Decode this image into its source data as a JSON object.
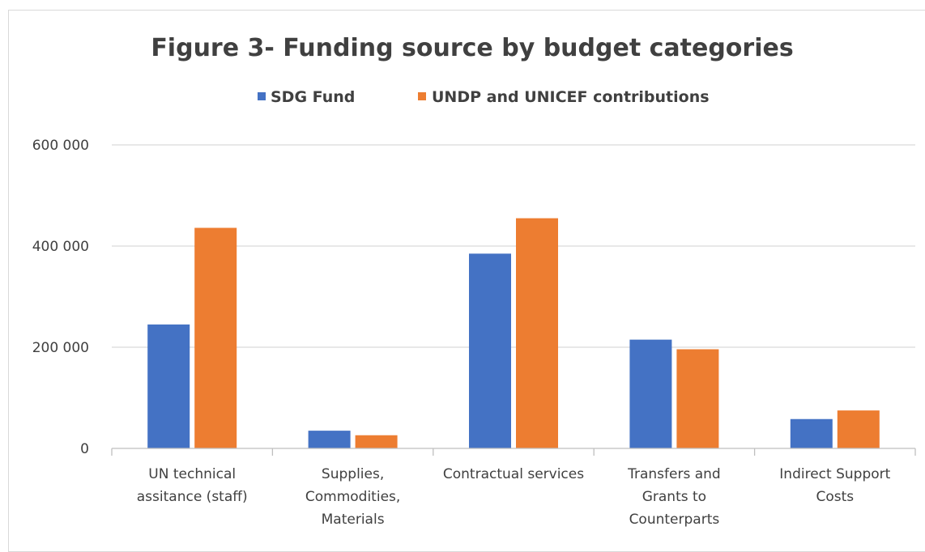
{
  "chart_data": {
    "type": "bar",
    "title": "Figure 3- Funding source by budget categories",
    "categories": [
      [
        "UN technical",
        "assitance (staff)"
      ],
      [
        "Supplies,",
        "Commodities,",
        "Materials"
      ],
      [
        "Contractual services"
      ],
      [
        "Transfers and",
        "Grants to",
        "Counterparts"
      ],
      [
        "Indirect Support",
        "Costs"
      ]
    ],
    "series": [
      {
        "name": "SDG Fund",
        "color": "#4472c4",
        "values": [
          245000,
          35000,
          385000,
          215000,
          58000
        ]
      },
      {
        "name": "UNDP and UNICEF contributions",
        "color": "#ed7d31",
        "values": [
          436000,
          26000,
          455000,
          196000,
          75000
        ]
      }
    ],
    "ylim": [
      0,
      600000
    ],
    "yticks": [
      0,
      200000,
      400000,
      600000
    ],
    "ytick_labels": [
      "0",
      "200 000",
      "400 000",
      "600 000"
    ],
    "xlabel": "",
    "ylabel": "",
    "grid": true,
    "legend_position": "top"
  }
}
